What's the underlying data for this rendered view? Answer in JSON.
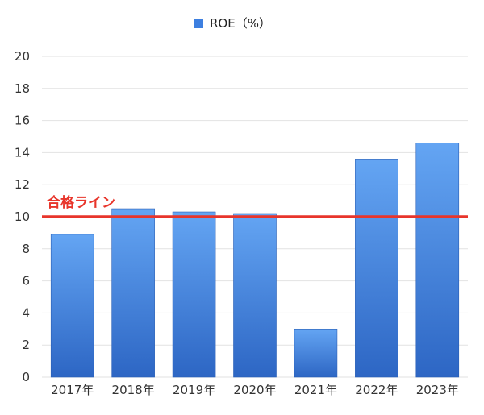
{
  "chart_data": {
    "type": "bar",
    "categories": [
      "2017年",
      "2018年",
      "2019年",
      "2020年",
      "2021年",
      "2022年",
      "2023年"
    ],
    "series": [
      {
        "name": "ROE（%）",
        "values": [
          8.9,
          10.5,
          10.3,
          10.2,
          3.0,
          13.6,
          14.6
        ]
      }
    ],
    "ylim": [
      0,
      20
    ],
    "yticks": [
      0,
      2,
      4,
      6,
      8,
      10,
      12,
      14,
      16,
      18,
      20
    ],
    "grid": true,
    "legend": "top-center",
    "threshold": {
      "value": 10,
      "label": "合格ライン",
      "color": "#e8352b"
    },
    "colors": {
      "bar_top": "#64a5f3",
      "bar_bottom": "#2d66c4",
      "grid": "#e2e2e2",
      "legend_swatch": "#3d7fe0"
    }
  }
}
